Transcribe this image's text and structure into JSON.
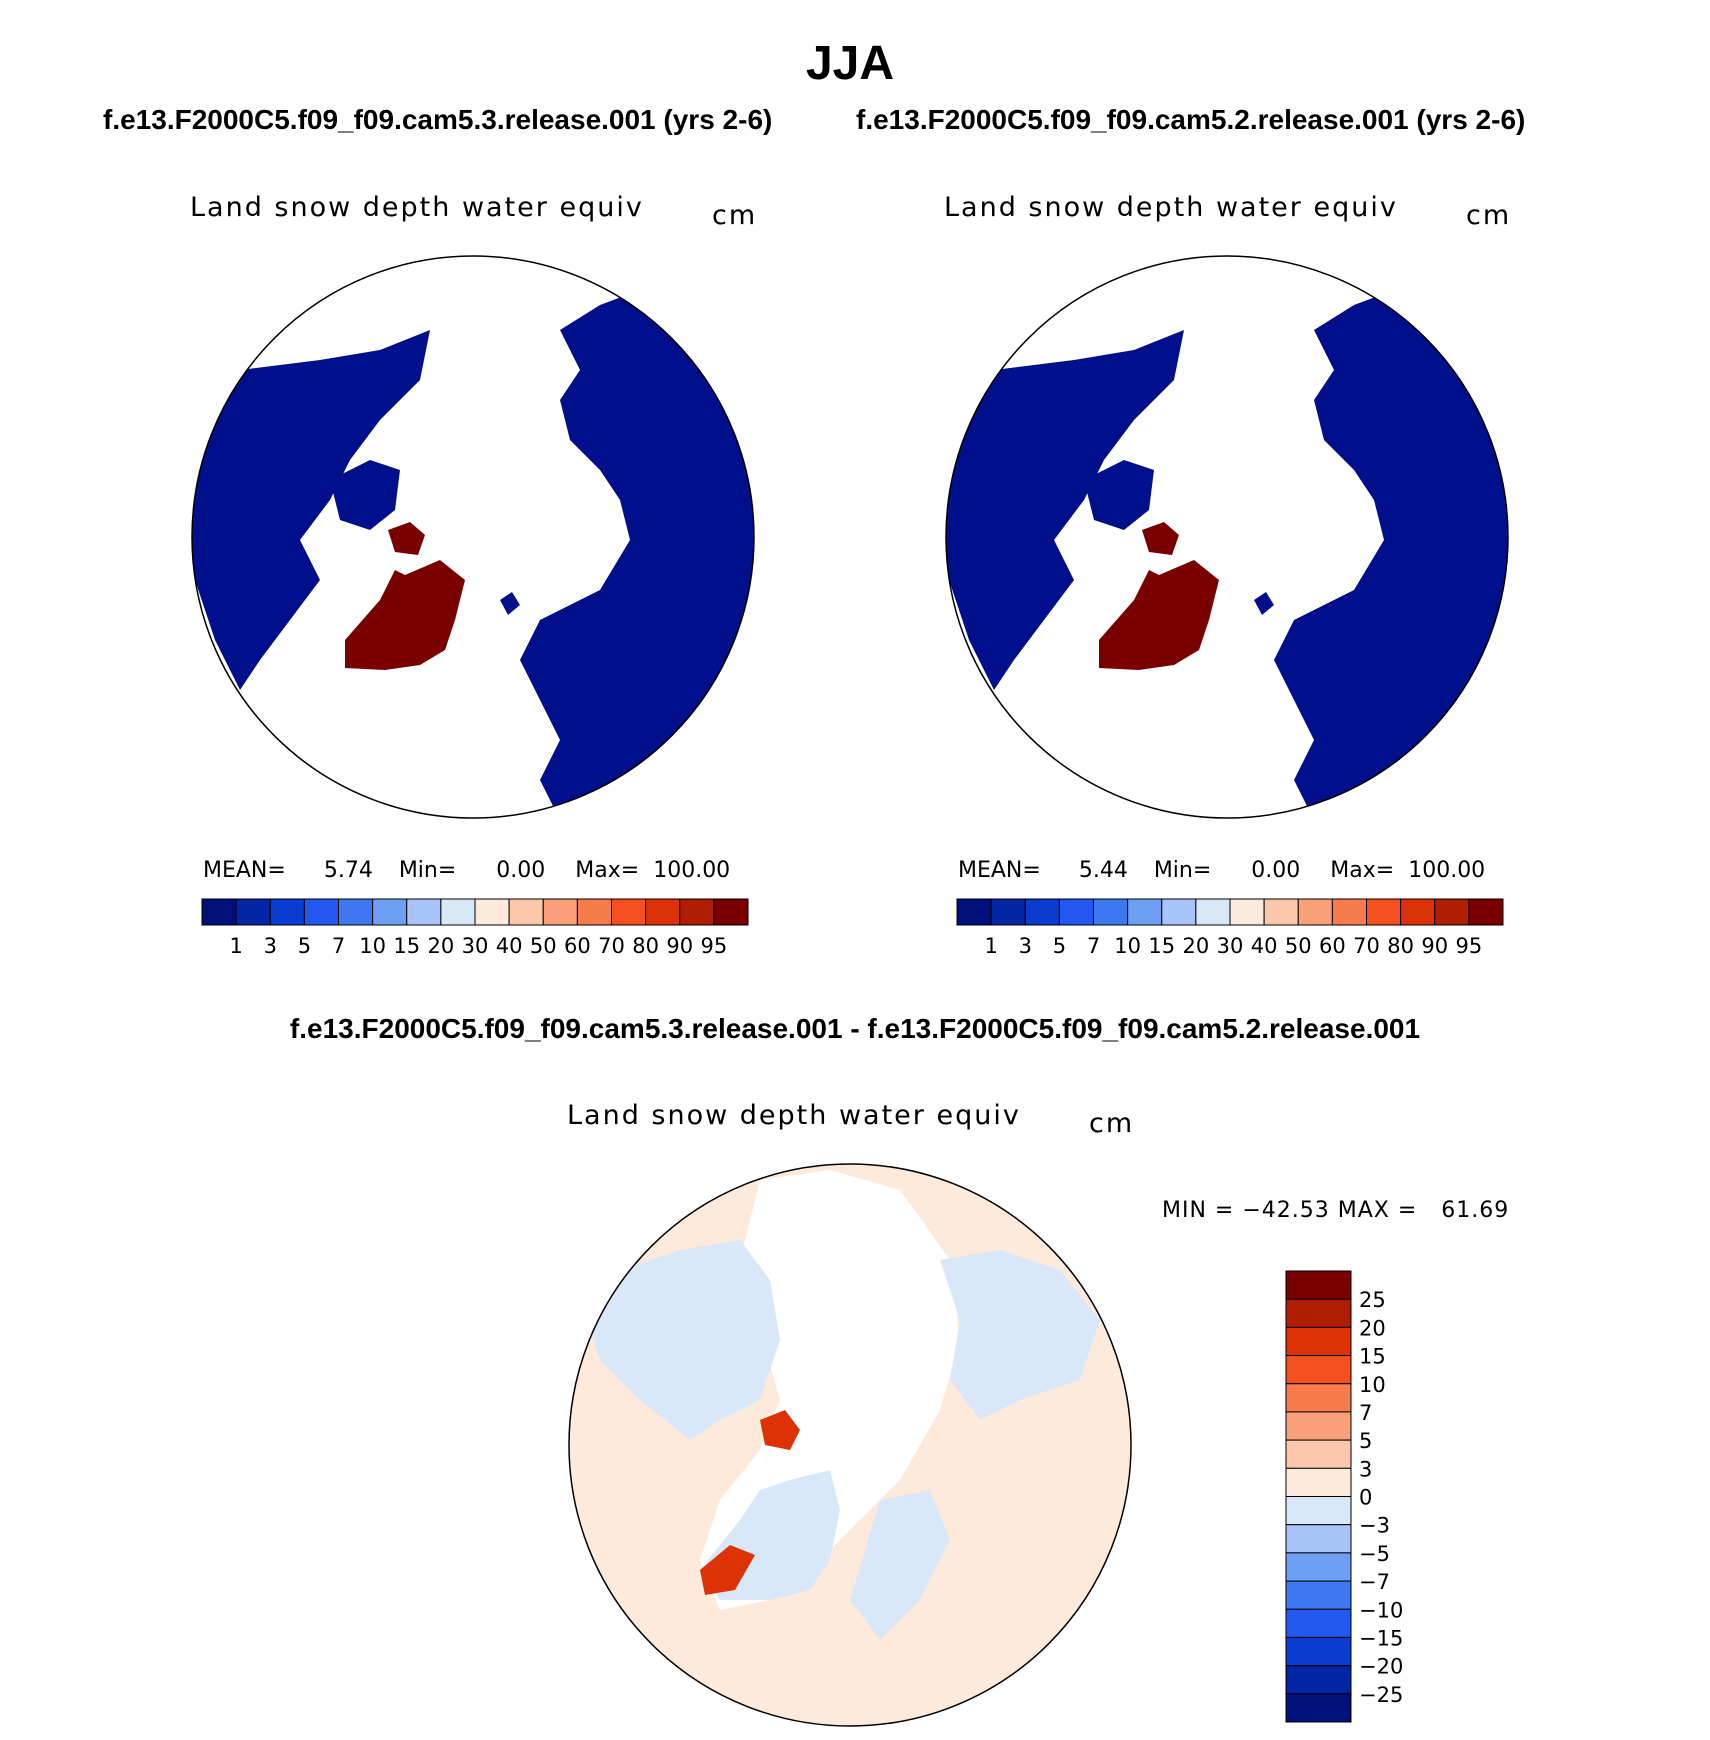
{
  "header": {
    "season": "JJA",
    "case_a": "f.e13.F2000C5.f09_f09.cam5.3.release.001 (yrs 2-6)",
    "case_b": "f.e13.F2000C5.f09_f09.cam5.2.release.001 (yrs 2-6)",
    "diff_title": "f.e13.F2000C5.f09_f09.cam5.3.release.001 - f.e13.F2000C5.f09_f09.cam5.2.release.001"
  },
  "panels": [
    {
      "variable": "Land snow depth water equiv",
      "units": "cm",
      "mean_label": "MEAN=",
      "mean": "5.74",
      "min_label": "Min=",
      "min": "0.00",
      "max_label": "Max=",
      "max": "100.00"
    },
    {
      "variable": "Land snow depth water equiv",
      "units": "cm",
      "mean_label": "MEAN=",
      "mean": "5.44",
      "min_label": "Min=",
      "min": "0.00",
      "max_label": "Max=",
      "max": "100.00"
    }
  ],
  "diff_panel": {
    "variable": "Land snow depth water equiv",
    "units": "cm",
    "minmax": "MIN = −42.53 MAX =   61.69"
  },
  "colors": {
    "abs_scale": [
      "#000f7a",
      "#0225a5",
      "#0a3ccf",
      "#2159f0",
      "#3b78f2",
      "#6d9ff5",
      "#a8c4f6",
      "#d9e8f8",
      "#feeadb",
      "#fcc7ab",
      "#f9a07b",
      "#f77c4b",
      "#f4511e",
      "#dd3206",
      "#b01e02",
      "#7a0000"
    ],
    "diff_scale": [
      "#7a0000",
      "#b01e02",
      "#dd3206",
      "#f4511e",
      "#f77c4b",
      "#f9a07b",
      "#fcc7ab",
      "#feeadb",
      "#d9e8f8",
      "#a8c4f6",
      "#6d9ff5",
      "#3b78f2",
      "#2159f0",
      "#0a3ccf",
      "#0225a5",
      "#000f7a"
    ],
    "land_snow": "#000f8c",
    "diff_pos": "#feeadb",
    "diff_neg": "#d9e8f8"
  },
  "chart_data": [
    {
      "type": "heatmap",
      "title": "Land snow depth water equiv",
      "units": "cm",
      "projection": "polar stereographic (north pole)",
      "colorbar_levels": [
        "1",
        "3",
        "5",
        "7",
        "10",
        "15",
        "20",
        "30",
        "40",
        "50",
        "60",
        "70",
        "80",
        "90",
        "95"
      ],
      "stats": {
        "mean": 5.74,
        "min": 0.0,
        "max": 100.0
      }
    },
    {
      "type": "heatmap",
      "title": "Land snow depth water equiv",
      "units": "cm",
      "projection": "polar stereographic (north pole)",
      "colorbar_levels": [
        "1",
        "3",
        "5",
        "7",
        "10",
        "15",
        "20",
        "30",
        "40",
        "50",
        "60",
        "70",
        "80",
        "90",
        "95"
      ],
      "stats": {
        "mean": 5.44,
        "min": 0.0,
        "max": 100.0
      }
    },
    {
      "type": "heatmap",
      "title": "Land snow depth water equiv",
      "units": "cm",
      "projection": "polar stereographic (north pole)",
      "colorbar_levels": [
        "25",
        "20",
        "15",
        "10",
        "7",
        "5",
        "3",
        "0",
        "−3",
        "−5",
        "−7",
        "−10",
        "−15",
        "−20",
        "−25"
      ],
      "stats": {
        "min": -42.53,
        "max": 61.69
      }
    }
  ]
}
